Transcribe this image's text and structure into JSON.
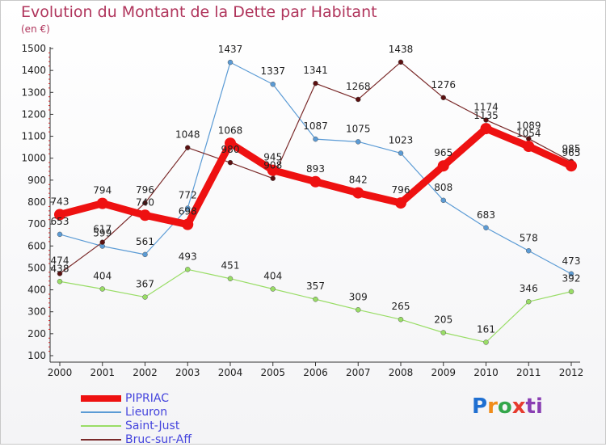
{
  "page": {
    "title": "Evolution du Montant de la Dette par Habitant",
    "unit": "(en €)",
    "logo": [
      "P",
      "r",
      "o",
      "x",
      "i",
      "ti"
    ]
  },
  "chart_data": {
    "type": "line",
    "title": "Evolution du Montant de la Dette par Habitant",
    "subtitle": "(en €)",
    "xlabel": "",
    "ylabel": "",
    "ylim": [
      100,
      1500
    ],
    "yticks": [
      100,
      200,
      300,
      400,
      500,
      600,
      700,
      800,
      900,
      1000,
      1100,
      1200,
      1300,
      1400,
      1500
    ],
    "categories": [
      "2000",
      "2001",
      "2002",
      "2003",
      "2004",
      "2005",
      "2006",
      "2007",
      "2008",
      "2009",
      "2010",
      "2011",
      "2012"
    ],
    "grid": false,
    "legend_position": "bottom-left",
    "series": [
      {
        "name": "PIPRIAC",
        "color": "#ee1111",
        "values": [
          743,
          794,
          740,
          698,
          1068,
          945,
          893,
          842,
          796,
          965,
          1135,
          1054,
          965
        ]
      },
      {
        "name": "Lieuron",
        "color": "#5b9bd5",
        "values": [
          653,
          599,
          561,
          772,
          1437,
          1337,
          1087,
          1075,
          1023,
          808,
          683,
          578,
          473
        ]
      },
      {
        "name": "Saint-Just",
        "color": "#99dd66",
        "values": [
          438,
          404,
          367,
          493,
          451,
          404,
          357,
          309,
          265,
          205,
          161,
          346,
          392
        ]
      },
      {
        "name": "Bruc-sur-Aff",
        "color": "#7a2a2a",
        "values": [
          474,
          617,
          796,
          1048,
          980,
          908,
          1341,
          1268,
          1438,
          1276,
          1174,
          1089,
          985
        ]
      }
    ]
  }
}
